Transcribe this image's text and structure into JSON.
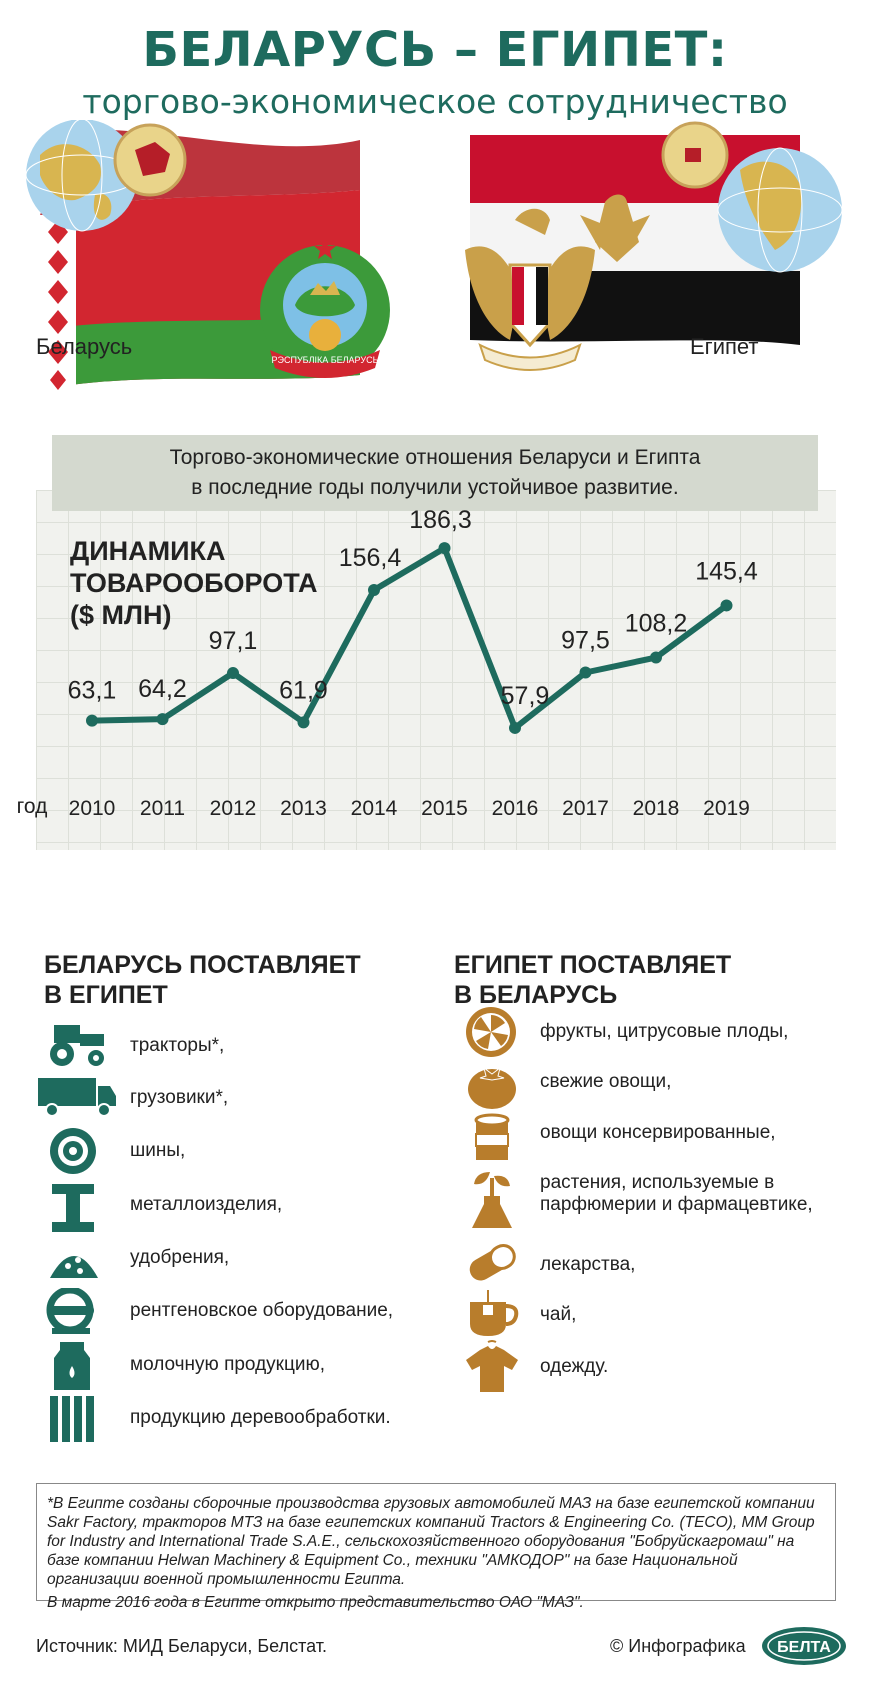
{
  "header": {
    "title": "БЕЛАРУСЬ – ЕГИПЕТ:",
    "subtitle": "торгово-экономическое сотрудничество"
  },
  "countries": {
    "left": "Беларусь",
    "right": "Египет",
    "emblem_ribbon": "РЭСПУБЛІКА БЕЛАРУСЬ"
  },
  "intro": {
    "line1": "Торгово-экономические отношения Беларуси и Египта",
    "line2": "в последние годы получили устойчивое развитие."
  },
  "colors": {
    "accent": "#1e6b5e",
    "gold": "#b87d2c",
    "flag_red": "#d22630",
    "flag_green": "#3c9a3a",
    "egypt_red": "#c8102e",
    "black": "#111111"
  },
  "chart_data": {
    "type": "line",
    "title": "ДИНАМИКА ТОВАРООБОРОТА ($ МЛН)",
    "title_lines": [
      "ДИНАМИКА",
      "ТОВАРООБОРОТА",
      "($ МЛН)"
    ],
    "xlabel": "год",
    "categories": [
      "2010",
      "2011",
      "2012",
      "2013",
      "2014",
      "2015",
      "2016",
      "2017",
      "2018",
      "2019"
    ],
    "values": [
      63.1,
      64.2,
      97.1,
      61.9,
      156.4,
      186.3,
      57.9,
      97.5,
      108.2,
      145.4
    ],
    "labels": [
      "63,1",
      "64,2",
      "97,1",
      "61,9",
      "156,4",
      "186,3",
      "57,9",
      "97,5",
      "108,2",
      "145,4"
    ],
    "ylim": [
      0,
      200
    ],
    "grid": true,
    "line_color": "#1e6b5e"
  },
  "exports": {
    "heading_lines": [
      "БЕЛАРУСЬ ПОСТАВЛЯЕТ",
      "В ЕГИПЕТ"
    ],
    "items": [
      {
        "icon": "tractor-icon",
        "text": "тракторы*,"
      },
      {
        "icon": "truck-icon",
        "text": "грузовики*,"
      },
      {
        "icon": "tire-icon",
        "text": "шины,"
      },
      {
        "icon": "steel-beam-icon",
        "text": "металлоизделия,"
      },
      {
        "icon": "fertilizer-icon",
        "text": "удобрения,"
      },
      {
        "icon": "xray-icon",
        "text": "рентгеновское оборудование,"
      },
      {
        "icon": "milk-icon",
        "text": "молочную продукцию,"
      },
      {
        "icon": "wood-icon",
        "text": "продукцию деревообработки."
      }
    ]
  },
  "imports": {
    "heading_lines": [
      "ЕГИПЕТ ПОСТАВЛЯЕТ",
      "В БЕЛАРУСЬ"
    ],
    "items": [
      {
        "icon": "citrus-icon",
        "text": "фрукты, цитрусовые плоды,"
      },
      {
        "icon": "tomato-icon",
        "text": "свежие овощи,"
      },
      {
        "icon": "can-icon",
        "text": "овощи консервированные,"
      },
      {
        "icon": "plant-flask-icon",
        "text": "растения, используемые в парфюмерии и фармацевтике,"
      },
      {
        "icon": "pill-icon",
        "text": "лекарства,"
      },
      {
        "icon": "tea-icon",
        "text": "чай,"
      },
      {
        "icon": "shirt-icon",
        "text": "одежду."
      }
    ]
  },
  "footnote": {
    "p1": "*В Египте созданы сборочные производства грузовых автомобилей МАЗ на базе египетской компании Sakr Factory, тракторов МТЗ на базе египетских компаний Tractors & Engineering Co. (TECO), MM Group for Industry and International Trade S.A.E., сельскохозяйственного оборудования \"Бобруйскагромаш\" на базе компании Helwan Machinery & Equipment Co., техники \"АМКОДОР\" на базе Национальной организации военной промышленности Египта.",
    "p2": "В марте 2016 года в Египте открыто представительство ОАО \"МАЗ\"."
  },
  "footer": {
    "source": "Источник: МИД Беларуси, Белстат.",
    "credit": "© Инфографика",
    "logo": "БЕЛТА"
  }
}
